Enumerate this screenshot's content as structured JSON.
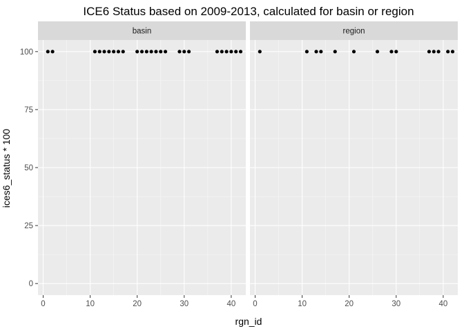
{
  "chart_data": {
    "type": "scatter",
    "title": "ICE6 Status based on 2009-2013, calculated for basin or region",
    "xlabel": "rgn_id",
    "ylabel": "ices6_status * 100",
    "xlim": [
      -1.1,
      43.1
    ],
    "ylim": [
      -5,
      105
    ],
    "x_ticks": [
      0,
      10,
      20,
      30,
      40
    ],
    "y_ticks": [
      0,
      25,
      50,
      75,
      100
    ],
    "grid": true,
    "colors": {
      "panel_bg": "#ebebeb",
      "grid_major": "#ffffff",
      "strip_bg": "#d9d9d9",
      "point": "#000000"
    },
    "facets": [
      {
        "label": "basin",
        "points": [
          {
            "x": 1,
            "y": 100
          },
          {
            "x": 2,
            "y": 100
          },
          {
            "x": 11,
            "y": 100
          },
          {
            "x": 12,
            "y": 100
          },
          {
            "x": 13,
            "y": 100
          },
          {
            "x": 14,
            "y": 100
          },
          {
            "x": 15,
            "y": 100
          },
          {
            "x": 16,
            "y": 100
          },
          {
            "x": 17,
            "y": 100
          },
          {
            "x": 20,
            "y": 100
          },
          {
            "x": 21,
            "y": 100
          },
          {
            "x": 22,
            "y": 100
          },
          {
            "x": 23,
            "y": 100
          },
          {
            "x": 24,
            "y": 100
          },
          {
            "x": 25,
            "y": 100
          },
          {
            "x": 26,
            "y": 100
          },
          {
            "x": 29,
            "y": 100
          },
          {
            "x": 30,
            "y": 100
          },
          {
            "x": 31,
            "y": 100
          },
          {
            "x": 37,
            "y": 100
          },
          {
            "x": 38,
            "y": 100
          },
          {
            "x": 39,
            "y": 100
          },
          {
            "x": 40,
            "y": 100
          },
          {
            "x": 41,
            "y": 100
          },
          {
            "x": 42,
            "y": 100
          }
        ]
      },
      {
        "label": "region",
        "points": [
          {
            "x": 1,
            "y": 100
          },
          {
            "x": 11,
            "y": 100
          },
          {
            "x": 13,
            "y": 100
          },
          {
            "x": 14,
            "y": 100
          },
          {
            "x": 17,
            "y": 100
          },
          {
            "x": 21,
            "y": 100
          },
          {
            "x": 26,
            "y": 100
          },
          {
            "x": 29,
            "y": 100
          },
          {
            "x": 30,
            "y": 100
          },
          {
            "x": 37,
            "y": 100
          },
          {
            "x": 38,
            "y": 100
          },
          {
            "x": 39,
            "y": 100
          },
          {
            "x": 41,
            "y": 100
          },
          {
            "x": 42,
            "y": 100
          }
        ]
      }
    ]
  }
}
